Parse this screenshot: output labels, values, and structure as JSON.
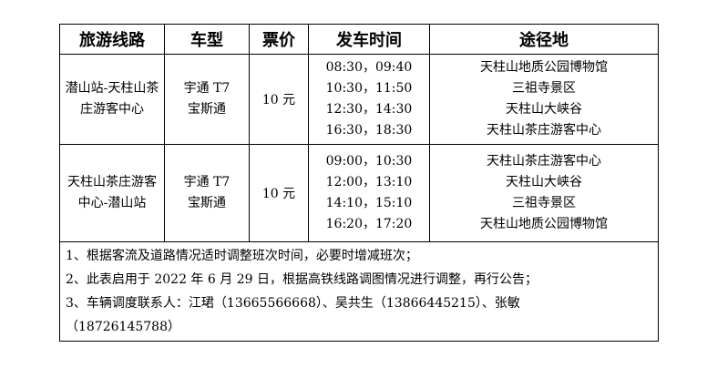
{
  "headers": [
    "旅游线路",
    "车型",
    "票价",
    "发车时间",
    "途径地"
  ],
  "rows": [
    {
      "route": "潜山站-天柱山茶庄游客中心",
      "vehicles": [
        "宇通 T7",
        "宝斯通"
      ],
      "price": "10 元",
      "times": [
        "08:30，09:40",
        "10:30，11:50",
        "12:30，14:30",
        "16:30，18:30"
      ],
      "stops": [
        "天柱山地质公园博物馆",
        "三祖寺景区",
        "天柱山大峡谷",
        "天柱山茶庄游客中心"
      ]
    },
    {
      "route": "天柱山茶庄游客中心-潜山站",
      "vehicles": [
        "宇通 T7",
        "宝斯通"
      ],
      "price": "10 元",
      "times": [
        "09:00，10:30",
        "12:00，13:10",
        "14:10，15:10",
        "16:20，17:20"
      ],
      "stops": [
        "天柱山茶庄游客中心",
        "天柱山大峡谷",
        "三祖寺景区",
        "天柱山地质公园博物馆"
      ]
    }
  ],
  "notes": [
    "1、根据客流及道路情况适时调整班次时间，必要时增减班次；",
    "2、此表启用于 2022 年 6 月 29 日，根据高铁线路调图情况进行调整，再行公告；",
    "3、车辆调度联系人：江珺（13665566668）、吴共生（13866445215）、张敏",
    "（18726145788）"
  ]
}
